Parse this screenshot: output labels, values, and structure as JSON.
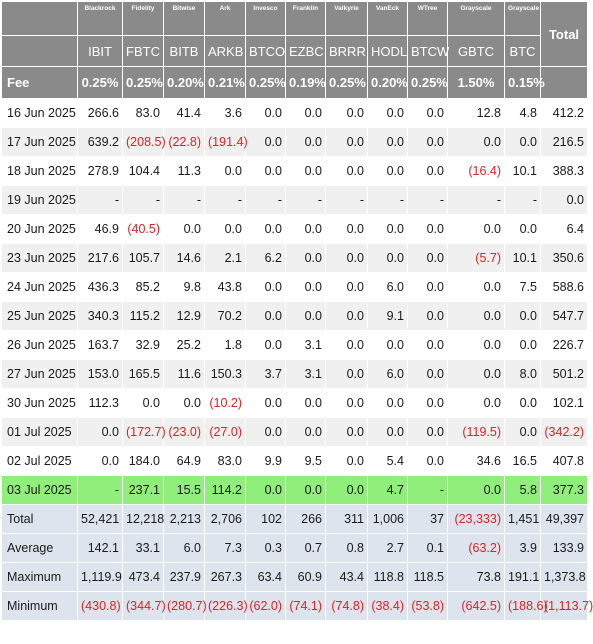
{
  "header": {
    "corner": "",
    "issuers": [
      "Blackrock",
      "Fidelity",
      "Bitwise",
      "Ark",
      "Invesco",
      "Franklin",
      "Valkyrie",
      "VanEck",
      "WTree",
      "Grayscale",
      "Grayscale"
    ],
    "total_label": "Total",
    "tickers": [
      "IBIT",
      "FBTC",
      "BITB",
      "ARKB",
      "BTCO",
      "EZBC",
      "BRRR",
      "HODL",
      "BTCW",
      "GBTC",
      "BTC"
    ],
    "fee_label": "Fee",
    "fees": [
      "0.25%",
      "0.25%",
      "0.20%",
      "0.21%",
      "0.25%",
      "0.19%",
      "0.25%",
      "0.20%",
      "0.25%",
      "1.50%",
      "0.15%"
    ]
  },
  "rows": [
    {
      "date": "16 Jun 2025",
      "values": [
        "266.6",
        "83.0",
        "41.4",
        "3.6",
        "0.0",
        "0.0",
        "0.0",
        "0.0",
        "0.0",
        "12.8",
        "4.8"
      ],
      "total": "412.2"
    },
    {
      "date": "17 Jun 2025",
      "values": [
        "639.2",
        "(208.5)",
        "(22.8)",
        "(191.4)",
        "0.0",
        "0.0",
        "0.0",
        "0.0",
        "0.0",
        "0.0",
        "0.0"
      ],
      "total": "216.5"
    },
    {
      "date": "18 Jun 2025",
      "values": [
        "278.9",
        "104.4",
        "11.3",
        "0.0",
        "0.0",
        "0.0",
        "0.0",
        "0.0",
        "0.0",
        "(16.4)",
        "10.1"
      ],
      "total": "388.3"
    },
    {
      "date": "19 Jun 2025",
      "values": [
        "-",
        "-",
        "-",
        "-",
        "-",
        "-",
        "-",
        "-",
        "-",
        "-",
        "-"
      ],
      "total": "0.0"
    },
    {
      "date": "20 Jun 2025",
      "values": [
        "46.9",
        "(40.5)",
        "0.0",
        "0.0",
        "0.0",
        "0.0",
        "0.0",
        "0.0",
        "0.0",
        "0.0",
        "0.0"
      ],
      "total": "6.4"
    },
    {
      "date": "23 Jun 2025",
      "values": [
        "217.6",
        "105.7",
        "14.6",
        "2.1",
        "6.2",
        "0.0",
        "0.0",
        "0.0",
        "0.0",
        "(5.7)",
        "10.1"
      ],
      "total": "350.6"
    },
    {
      "date": "24 Jun 2025",
      "values": [
        "436.3",
        "85.2",
        "9.8",
        "43.8",
        "0.0",
        "0.0",
        "0.0",
        "6.0",
        "0.0",
        "0.0",
        "7.5"
      ],
      "total": "588.6"
    },
    {
      "date": "25 Jun 2025",
      "values": [
        "340.3",
        "115.2",
        "12.9",
        "70.2",
        "0.0",
        "0.0",
        "0.0",
        "9.1",
        "0.0",
        "0.0",
        "0.0"
      ],
      "total": "547.7"
    },
    {
      "date": "26 Jun 2025",
      "values": [
        "163.7",
        "32.9",
        "25.2",
        "1.8",
        "0.0",
        "3.1",
        "0.0",
        "0.0",
        "0.0",
        "0.0",
        "0.0"
      ],
      "total": "226.7"
    },
    {
      "date": "27 Jun 2025",
      "values": [
        "153.0",
        "165.5",
        "11.6",
        "150.3",
        "3.7",
        "3.1",
        "0.0",
        "6.0",
        "0.0",
        "0.0",
        "8.0"
      ],
      "total": "501.2"
    },
    {
      "date": "30 Jun 2025",
      "values": [
        "112.3",
        "0.0",
        "0.0",
        "(10.2)",
        "0.0",
        "0.0",
        "0.0",
        "0.0",
        "0.0",
        "0.0",
        "0.0"
      ],
      "total": "102.1"
    },
    {
      "date": "01 Jul 2025",
      "values": [
        "0.0",
        "(172.7)",
        "(23.0)",
        "(27.0)",
        "0.0",
        "0.0",
        "0.0",
        "0.0",
        "0.0",
        "(119.5)",
        "0.0"
      ],
      "total": "(342.2)"
    },
    {
      "date": "02 Jul 2025",
      "values": [
        "0.0",
        "184.0",
        "64.9",
        "83.0",
        "9.9",
        "9.5",
        "0.0",
        "5.4",
        "0.0",
        "34.6",
        "16.5"
      ],
      "total": "407.8"
    },
    {
      "date": "03 Jul 2025",
      "values": [
        "-",
        "237.1",
        "15.5",
        "114.2",
        "0.0",
        "0.0",
        "0.0",
        "4.7",
        "-",
        "0.0",
        "5.8"
      ],
      "total": "377.3",
      "highlight": true
    }
  ],
  "summary": [
    {
      "label": "Total",
      "values": [
        "52,421",
        "12,218",
        "2,213",
        "2,706",
        "102",
        "266",
        "311",
        "1,006",
        "37",
        "(23,333)",
        "1,451"
      ],
      "total": "49,397"
    },
    {
      "label": "Average",
      "values": [
        "142.1",
        "33.1",
        "6.0",
        "7.3",
        "0.3",
        "0.7",
        "0.8",
        "2.7",
        "0.1",
        "(63.2)",
        "3.9"
      ],
      "total": "133.9"
    },
    {
      "label": "Maximum",
      "values": [
        "1,119.9",
        "473.4",
        "237.9",
        "267.3",
        "63.4",
        "60.9",
        "43.4",
        "118.8",
        "118.5",
        "73.8",
        "191.1"
      ],
      "total": "1,373.8"
    },
    {
      "label": "Minimum",
      "values": [
        "(430.8)",
        "(344.7)",
        "(280.7)",
        "(226.3)",
        "(62.0)",
        "(74.1)",
        "(74.8)",
        "(38.4)",
        "(53.8)",
        "(642.5)",
        "(188.6)"
      ],
      "total": "(1,113.7)"
    }
  ],
  "colors": {
    "header_bg": "#8a8a8a",
    "negative": "#e02020",
    "highlight": "#90ee7a",
    "summary_bg": "#dde4ee"
  }
}
